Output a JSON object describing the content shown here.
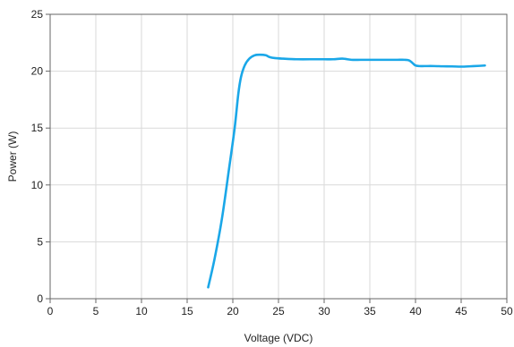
{
  "chart_data": {
    "type": "line",
    "title": "",
    "xlabel": "Voltage (VDC)",
    "ylabel": "Power (W)",
    "xlim": [
      0,
      50
    ],
    "ylim": [
      0,
      25
    ],
    "x_ticks": [
      0,
      5,
      10,
      15,
      20,
      25,
      30,
      35,
      40,
      45,
      50
    ],
    "y_ticks": [
      0,
      5,
      10,
      15,
      20,
      25
    ],
    "grid": true,
    "line_color": "#1aa7e8",
    "grid_color": "#d9d9d9",
    "series": [
      {
        "x": [
          17.3,
          18.0,
          18.8,
          19.6,
          20.2,
          20.6,
          20.9,
          21.3,
          21.8,
          22.4,
          23.0,
          23.6,
          24.0,
          24.6,
          25.5,
          27.0,
          29.0,
          30.0,
          31.0,
          32.0,
          33.0,
          34.0,
          35.0,
          36.0,
          37.0,
          38.0,
          38.8,
          39.3,
          39.7,
          40.0,
          40.4,
          41.0,
          42.0,
          43.0,
          44.0,
          45.0,
          46.0,
          47.0,
          47.6
        ],
        "y": [
          1.0,
          3.5,
          7.0,
          11.5,
          15.0,
          18.0,
          19.5,
          20.5,
          21.1,
          21.4,
          21.45,
          21.4,
          21.25,
          21.15,
          21.1,
          21.05,
          21.05,
          21.05,
          21.05,
          21.1,
          21.0,
          21.0,
          21.0,
          21.0,
          21.0,
          21.0,
          21.0,
          20.95,
          20.7,
          20.5,
          20.45,
          20.45,
          20.45,
          20.43,
          20.42,
          20.4,
          20.43,
          20.47,
          20.5
        ]
      }
    ]
  }
}
